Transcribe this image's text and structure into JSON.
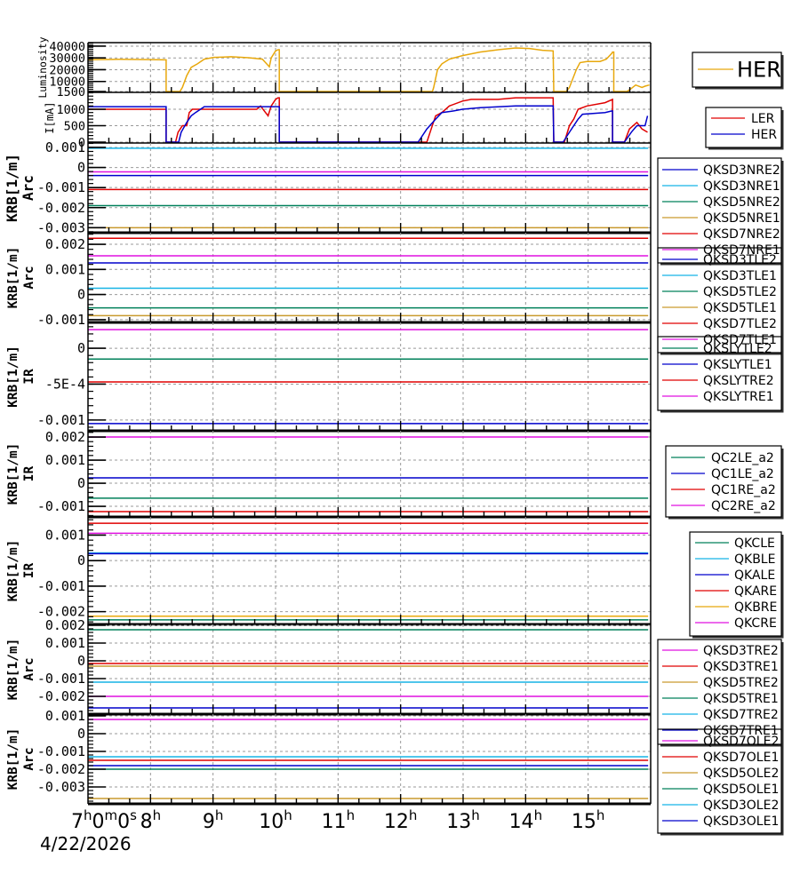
{
  "x_axis": {
    "tick_hours": [
      7,
      8,
      9,
      10,
      11,
      12,
      13,
      14,
      15
    ],
    "tick_labels": [
      "7h0m0s",
      "8h",
      "9h",
      "10h",
      "11h",
      "12h",
      "13h",
      "14h",
      "15h"
    ],
    "date_label": "4/22/2026"
  },
  "chart_data": [
    {
      "type": "line",
      "ylabel": [
        "Luminosity"
      ],
      "xlim": [
        7,
        16
      ],
      "ylim": [
        750,
        43000
      ],
      "yticks": [
        1500,
        10000,
        20000,
        30000,
        40000
      ],
      "ytick_labels": [
        "1500",
        "10000",
        "20000",
        "30000",
        "40000"
      ],
      "grid": true,
      "legend_position": "right",
      "series": [
        {
          "name": "HER",
          "color": "#e8a80c",
          "points": [
            [
              7.0,
              28500
            ],
            [
              7.5,
              28800
            ],
            [
              8.0,
              28600
            ],
            [
              8.25,
              28400
            ],
            [
              8.25,
              1500
            ],
            [
              8.47,
              1500
            ],
            [
              8.51,
              5000
            ],
            [
              8.58,
              15000
            ],
            [
              8.65,
              22000
            ],
            [
              8.75,
              25000
            ],
            [
              8.86,
              29000
            ],
            [
              9.01,
              30500
            ],
            [
              9.29,
              31000
            ],
            [
              9.57,
              30200
            ],
            [
              9.79,
              29000
            ],
            [
              9.9,
              22500
            ],
            [
              9.93,
              30000
            ],
            [
              10.0,
              36000
            ],
            [
              10.04,
              37000
            ],
            [
              10.06,
              37000
            ],
            [
              10.06,
              1500
            ],
            [
              12.51,
              1500
            ],
            [
              12.53,
              5000
            ],
            [
              12.59,
              20000
            ],
            [
              12.66,
              25000
            ],
            [
              12.78,
              29000
            ],
            [
              12.99,
              32000
            ],
            [
              13.27,
              35000
            ],
            [
              13.56,
              37000
            ],
            [
              13.84,
              38500
            ],
            [
              14.06,
              38000
            ],
            [
              14.27,
              36500
            ],
            [
              14.44,
              36000
            ],
            [
              14.45,
              1500
            ],
            [
              14.65,
              1500
            ],
            [
              14.7,
              5000
            ],
            [
              14.81,
              20000
            ],
            [
              14.87,
              26000
            ],
            [
              14.98,
              27000
            ],
            [
              15.19,
              27000
            ],
            [
              15.29,
              29000
            ],
            [
              15.38,
              34000
            ],
            [
              15.39,
              35000
            ],
            [
              15.41,
              35000
            ],
            [
              15.41,
              1500
            ],
            [
              15.62,
              1500
            ],
            [
              15.69,
              4000
            ],
            [
              15.76,
              7000
            ],
            [
              15.86,
              5000
            ],
            [
              15.91,
              6000
            ],
            [
              15.98,
              7000
            ]
          ]
        }
      ]
    },
    {
      "type": "line",
      "ylabel": [
        "I[mA]"
      ],
      "xlim": [
        7,
        16
      ],
      "ylim": [
        -27,
        1514
      ],
      "yticks": [
        0,
        500,
        1000
      ],
      "ytick_labels": [
        "0",
        "500",
        "1000"
      ],
      "grid": true,
      "legend_position": "right",
      "series": [
        {
          "name": "LER",
          "color": "#e00000",
          "points": [
            [
              7.0,
              1000
            ],
            [
              8.25,
              1000
            ],
            [
              8.25,
              0
            ],
            [
              8.4,
              0
            ],
            [
              8.44,
              300
            ],
            [
              8.51,
              500
            ],
            [
              8.58,
              500
            ],
            [
              8.62,
              900
            ],
            [
              8.67,
              1000
            ],
            [
              9.7,
              1000
            ],
            [
              9.76,
              1100
            ],
            [
              9.84,
              900
            ],
            [
              9.88,
              800
            ],
            [
              9.93,
              1100
            ],
            [
              10.0,
              1300
            ],
            [
              10.04,
              1350
            ],
            [
              10.06,
              1350
            ],
            [
              10.06,
              0
            ],
            [
              12.42,
              0
            ],
            [
              12.49,
              400
            ],
            [
              12.56,
              800
            ],
            [
              12.66,
              900
            ],
            [
              12.78,
              1100
            ],
            [
              12.99,
              1250
            ],
            [
              13.13,
              1300
            ],
            [
              13.56,
              1300
            ],
            [
              13.84,
              1350
            ],
            [
              14.44,
              1350
            ],
            [
              14.45,
              0
            ],
            [
              14.62,
              0
            ],
            [
              14.7,
              500
            ],
            [
              14.77,
              700
            ],
            [
              14.84,
              1000
            ],
            [
              14.98,
              1100
            ],
            [
              15.27,
              1200
            ],
            [
              15.39,
              1300
            ],
            [
              15.39,
              0
            ],
            [
              15.58,
              0
            ],
            [
              15.66,
              400
            ],
            [
              15.78,
              600
            ],
            [
              15.86,
              400
            ],
            [
              15.95,
              300
            ]
          ]
        },
        {
          "name": "HER",
          "color": "#0000cc",
          "points": [
            [
              7.0,
              1080
            ],
            [
              8.25,
              1080
            ],
            [
              8.25,
              0
            ],
            [
              8.45,
              0
            ],
            [
              8.49,
              300
            ],
            [
              8.58,
              600
            ],
            [
              8.65,
              800
            ],
            [
              8.72,
              900
            ],
            [
              8.8,
              1000
            ],
            [
              8.86,
              1080
            ],
            [
              10.06,
              1080
            ],
            [
              10.06,
              0
            ],
            [
              12.28,
              0
            ],
            [
              12.42,
              400
            ],
            [
              12.56,
              700
            ],
            [
              12.66,
              900
            ],
            [
              12.85,
              950
            ],
            [
              12.99,
              1000
            ],
            [
              13.27,
              1050
            ],
            [
              13.84,
              1100
            ],
            [
              14.44,
              1100
            ],
            [
              14.45,
              0
            ],
            [
              14.6,
              0
            ],
            [
              14.7,
              300
            ],
            [
              14.84,
              700
            ],
            [
              14.91,
              850
            ],
            [
              15.27,
              900
            ],
            [
              15.38,
              950
            ],
            [
              15.39,
              950
            ],
            [
              15.39,
              0
            ],
            [
              15.58,
              0
            ],
            [
              15.69,
              300
            ],
            [
              15.78,
              500
            ],
            [
              15.91,
              500
            ],
            [
              15.95,
              800
            ]
          ]
        }
      ]
    },
    {
      "type": "line",
      "ylabel": [
        "KRB[1/m]",
        "Arc"
      ],
      "xlim": [
        7,
        16
      ],
      "ylim": [
        -0.00325,
        0.00122
      ],
      "yticks": [
        0.001,
        0,
        -0.001,
        -0.002,
        -0.003
      ],
      "ytick_labels": [
        "0.001",
        "0",
        "-0.001",
        "-0.002",
        "-0.003"
      ],
      "grid": true,
      "legend_position": "right",
      "series": [
        {
          "name": "QKSD3NRE2",
          "color": "#0000cc",
          "value": -0.0004
        },
        {
          "name": "QKSD3NRE1",
          "color": "#16b4e6",
          "value": 0.00096
        },
        {
          "name": "QKSD5NRE2",
          "color": "#00805a",
          "value": -0.0019
        },
        {
          "name": "QKSD5NRE1",
          "color": "#c99a2e",
          "value": -0.003
        },
        {
          "name": "QKSD7NRE2",
          "color": "#e00000",
          "value": -0.0011
        },
        {
          "name": "QKSD7NRE1",
          "color": "#e010e0",
          "value": -0.00022
        }
      ]
    },
    {
      "type": "line",
      "ylabel": [
        "KRB[1/m]",
        "Arc"
      ],
      "xlim": [
        7,
        16
      ],
      "ylim": [
        -0.00111,
        0.00246
      ],
      "yticks": [
        0.002,
        0.001,
        0,
        -0.001
      ],
      "ytick_labels": [
        "0.002",
        "0.001",
        "0",
        "-0.001"
      ],
      "grid": true,
      "legend_position": "right",
      "series": [
        {
          "name": "QKSD3TLE2",
          "color": "#0000cc",
          "value": 0.00126
        },
        {
          "name": "QKSD3TLE1",
          "color": "#16b4e6",
          "value": 0.00025
        },
        {
          "name": "QKSD5TLE2",
          "color": "#00805a",
          "value": -0.00053
        },
        {
          "name": "QKSD5TLE1",
          "color": "#c99a2e",
          "value": -0.00084
        },
        {
          "name": "QKSD7TLE2",
          "color": "#e00000",
          "value": 0.00224
        },
        {
          "name": "QKSD7TLE1",
          "color": "#e010e0",
          "value": 0.00154
        }
      ]
    },
    {
      "type": "line",
      "ylabel": [
        "KRB[1/m]",
        "IR"
      ],
      "xlim": [
        7,
        16
      ],
      "ylim": [
        -0.00115,
        0.00036
      ],
      "yticks": [
        0,
        -0.0005,
        -0.001
      ],
      "ytick_labels": [
        "0",
        "-5E-4",
        "-0.001"
      ],
      "grid": true,
      "legend_position": "right",
      "series": [
        {
          "name": "QKSLYTLE2",
          "color": "#00805a",
          "value": -0.00015
        },
        {
          "name": "QKSLYTLE1",
          "color": "#0000cc",
          "value": -0.00105
        },
        {
          "name": "QKSLYTRE2",
          "color": "#e00000",
          "value": -0.00047
        },
        {
          "name": "QKSLYTRE1",
          "color": "#e010e0",
          "value": 0.00026
        }
      ]
    },
    {
      "type": "line",
      "ylabel": [
        "KRB[1/m]",
        "IR"
      ],
      "xlim": [
        7,
        16
      ],
      "ylim": [
        -0.00146,
        0.00227
      ],
      "yticks": [
        0.002,
        0.001,
        0,
        -0.001
      ],
      "ytick_labels": [
        "0.002",
        "0.001",
        "0",
        "-0.001"
      ],
      "grid": true,
      "legend_position": "right",
      "series": [
        {
          "name": "QC2LE_a2",
          "color": "#00805a",
          "value": -0.00065
        },
        {
          "name": "QC1LE_a2",
          "color": "#0000cc",
          "value": 0.00023
        },
        {
          "name": "QC1RE_a2",
          "color": "#e00000",
          "value": -0.00123
        },
        {
          "name": "QC2RE_a2",
          "color": "#e010e0",
          "value": 0.002
        }
      ]
    },
    {
      "type": "line",
      "ylabel": [
        "KRB[1/m]",
        "IR"
      ],
      "xlim": [
        7,
        16
      ],
      "ylim": [
        -0.0025,
        0.00171
      ],
      "yticks": [
        0.001,
        0,
        -0.001,
        -0.002
      ],
      "ytick_labels": [
        "0.001",
        "0",
        "-0.001",
        "-0.002"
      ],
      "grid": true,
      "legend_position": "right",
      "series": [
        {
          "name": "QKCLE",
          "color": "#00805a",
          "value": -0.00232
        },
        {
          "name": "QKBLE",
          "color": "#16b4e6",
          "value": 0.0003
        },
        {
          "name": "QKALE",
          "color": "#0000cc",
          "value": 0.00027
        },
        {
          "name": "QKARE",
          "color": "#e00000",
          "value": 0.00146
        },
        {
          "name": "QKBRE",
          "color": "#e8a80c",
          "value": -0.00218
        },
        {
          "name": "QKCRE",
          "color": "#e010e0",
          "value": 0.00107
        }
      ]
    },
    {
      "type": "line",
      "ylabel": [
        "KRB[1/m]",
        "Arc"
      ],
      "xlim": [
        7,
        16
      ],
      "ylim": [
        -0.003,
        0.00205
      ],
      "yticks": [
        0.002,
        0.001,
        0,
        -0.001,
        -0.002
      ],
      "ytick_labels": [
        "0.002",
        "0.001",
        "0",
        "-0.001",
        "-0.002"
      ],
      "grid": true,
      "legend_position": "right",
      "series": [
        {
          "name": "QKSD3TRE2",
          "color": "#e010e0",
          "value": -0.002
        },
        {
          "name": "QKSD3TRE1",
          "color": "#e00000",
          "value": -0.00015
        },
        {
          "name": "QKSD5TRE2",
          "color": "#c99a2e",
          "value": -0.0003
        },
        {
          "name": "QKSD5TRE1",
          "color": "#00805a",
          "value": 0.00175
        },
        {
          "name": "QKSD7TRE2",
          "color": "#16b4e6",
          "value": -0.0012
        },
        {
          "name": "QKSD7TRE1",
          "color": "#0000cc",
          "value": -0.00265
        }
      ]
    },
    {
      "type": "line",
      "ylabel": [
        "KRB[1/m]",
        "Arc"
      ],
      "xlim": [
        7,
        16
      ],
      "ylim": [
        -0.00395,
        0.0011
      ],
      "yticks": [
        0.001,
        0,
        -0.001,
        -0.002,
        -0.003
      ],
      "ytick_labels": [
        "0.001",
        "0",
        "-0.001",
        "-0.002",
        "-0.003"
      ],
      "grid": true,
      "legend_position": "right",
      "series": [
        {
          "name": "QKSD7OLE2",
          "color": "#e010e0",
          "value": 0.0008
        },
        {
          "name": "QKSD7OLE1",
          "color": "#e00000",
          "value": -0.0015
        },
        {
          "name": "QKSD5OLE2",
          "color": "#c99a2e",
          "value": -0.00365
        },
        {
          "name": "QKSD5OLE1",
          "color": "#00805a",
          "value": -0.002
        },
        {
          "name": "QKSD3OLE2",
          "color": "#16b4e6",
          "value": -0.0013
        },
        {
          "name": "QKSD3OLE1",
          "color": "#0000cc",
          "value": -0.0018
        }
      ]
    }
  ]
}
